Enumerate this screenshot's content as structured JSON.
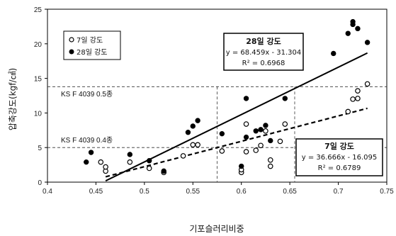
{
  "chart_data": {
    "type": "scatter",
    "xlabel": "기포슬러리비중",
    "ylabel": "압축강도(kgf/㎠)",
    "xlim": [
      0.4,
      0.75
    ],
    "ylim": [
      0,
      25
    ],
    "x_ticks": [
      "0.4",
      "0.45",
      "0.5",
      "0.55",
      "0.6",
      "0.65",
      "0.7",
      "0.75"
    ],
    "y_ticks": [
      "0",
      "5",
      "10",
      "15",
      "20",
      "25"
    ],
    "grid": "dashed reference lines",
    "legend_position": "top-left",
    "series": [
      {
        "name": "7일 강도",
        "marker": "open-circle",
        "points": [
          [
            0.455,
            2.9
          ],
          [
            0.46,
            1.6
          ],
          [
            0.46,
            2.2
          ],
          [
            0.485,
            2.9
          ],
          [
            0.505,
            2.0
          ],
          [
            0.52,
            1.4
          ],
          [
            0.54,
            3.8
          ],
          [
            0.55,
            5.4
          ],
          [
            0.555,
            5.4
          ],
          [
            0.58,
            4.5
          ],
          [
            0.6,
            1.4
          ],
          [
            0.6,
            1.8
          ],
          [
            0.605,
            4.4
          ],
          [
            0.605,
            8.4
          ],
          [
            0.615,
            4.6
          ],
          [
            0.62,
            5.3
          ],
          [
            0.625,
            7.4
          ],
          [
            0.63,
            2.3
          ],
          [
            0.63,
            3.2
          ],
          [
            0.64,
            5.9
          ],
          [
            0.645,
            8.4
          ],
          [
            0.71,
            10.2
          ],
          [
            0.715,
            12.0
          ],
          [
            0.72,
            12.1
          ],
          [
            0.72,
            13.2
          ],
          [
            0.73,
            14.2
          ]
        ]
      },
      {
        "name": "28일 강도",
        "marker": "filled-circle",
        "points": [
          [
            0.44,
            2.9
          ],
          [
            0.445,
            4.3
          ],
          [
            0.485,
            4.0
          ],
          [
            0.505,
            3.1
          ],
          [
            0.52,
            1.6
          ],
          [
            0.545,
            7.2
          ],
          [
            0.55,
            8.1
          ],
          [
            0.555,
            8.9
          ],
          [
            0.58,
            7.0
          ],
          [
            0.6,
            2.3
          ],
          [
            0.605,
            6.5
          ],
          [
            0.605,
            12.1
          ],
          [
            0.615,
            7.4
          ],
          [
            0.62,
            7.6
          ],
          [
            0.625,
            8.2
          ],
          [
            0.63,
            6.0
          ],
          [
            0.645,
            12.1
          ],
          [
            0.695,
            18.6
          ],
          [
            0.71,
            21.5
          ],
          [
            0.715,
            22.8
          ],
          [
            0.715,
            23.2
          ],
          [
            0.72,
            22.2
          ],
          [
            0.73,
            20.2
          ]
        ]
      }
    ],
    "trendlines": [
      {
        "series": "28일 강도",
        "slope": 68.459,
        "intercept": -31.304,
        "x_range": [
          0.46,
          0.73
        ],
        "style": "solid"
      },
      {
        "series": "7일 강도",
        "slope": 36.666,
        "intercept": -16.095,
        "x_range": [
          0.46,
          0.73
        ],
        "style": "dashed"
      }
    ],
    "reference_lines": [
      {
        "label": "KS F 4039 0.5종",
        "y": 13.8
      },
      {
        "label": "KS F 4039 0.4종",
        "y": 5.0
      }
    ],
    "vertical_reference_lines": [
      0.575,
      0.655
    ],
    "legend_entries": [
      {
        "label": "7일 강도",
        "marker": "open-circle"
      },
      {
        "label": "28일 강도",
        "marker": "filled-circle"
      }
    ],
    "annotations": {
      "box28": {
        "title": "28일 강도",
        "equation": "y = 68.459x - 31.304",
        "r2": "R² = 0.6968"
      },
      "box7": {
        "title": "7일 강도",
        "equation": "y = 36.666x - 16.095",
        "r2": "R² = 0.6789"
      }
    }
  }
}
